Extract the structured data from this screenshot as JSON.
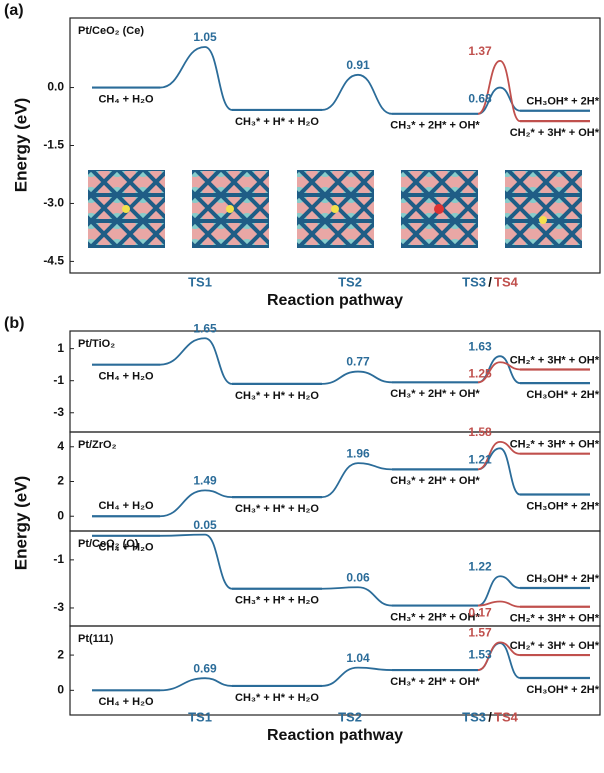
{
  "chart_data": [
    {
      "type": "profile",
      "panel_label": "(a)",
      "title": "Pt/CeO₂ (Ce)",
      "ylabel": "Energy (eV)",
      "xlabel": "Reaction pathway",
      "xticks": [
        "TS1",
        "TS2",
        "TS3",
        "TS4"
      ],
      "xtick_separator": "/",
      "color": "#2b6c99",
      "ylim": [
        -4.8,
        1.8
      ],
      "yticks": [
        {
          "value": 0,
          "label": "0.0"
        },
        -1.5,
        {
          "value": -3,
          "label": "-3.0"
        },
        -4.5
      ],
      "states": [
        {
          "label": "CH₄ + H₂O",
          "energy": 0
        },
        {
          "label": "CH₃* + H* + H₂O",
          "energy": -0.58
        },
        {
          "label": "CH₃* + 2H* + OH*",
          "energy": -0.68
        }
      ],
      "barriers": [
        1.05,
        0.91
      ],
      "branches": [
        {
          "color": "#2b6c99",
          "barrier": 0.68,
          "product": {
            "label": "CH₃OH* + 2H*",
            "energy": -0.6
          }
        },
        {
          "color": "#c0504d",
          "barrier": 1.37,
          "product": {
            "label": "CH₂* + 3H* + OH*",
            "energy": -0.87
          }
        }
      ]
    },
    {
      "type": "profile",
      "panel_label": "(b)",
      "title": "Pt/TiO₂",
      "ylabel": "Energy (eV)",
      "color": "#2b6c99",
      "ylim": [
        -4.2,
        2.1
      ],
      "yticks": [
        1,
        -1,
        -3
      ],
      "states": [
        {
          "label": "CH₄ + H₂O",
          "energy": 0
        },
        {
          "label": "CH₃* + H* + H₂O",
          "energy": -1.2
        },
        {
          "label": "CH₃* + 2H* + OH*",
          "energy": -1.1
        }
      ],
      "barriers": [
        1.65,
        0.77
      ],
      "branches": [
        {
          "color": "#2b6c99",
          "barrier": 1.63,
          "product": {
            "label": "CH₃OH* + 2H*",
            "energy": -1.15
          }
        },
        {
          "color": "#c0504d",
          "barrier": 1.25,
          "product": {
            "label": "CH₂* + 3H* + OH*",
            "energy": -0.3
          }
        }
      ]
    },
    {
      "type": "profile",
      "title": "Pt/ZrO₂",
      "color": "#2b6c99",
      "ylim": [
        -0.85,
        4.85
      ],
      "yticks": [
        4,
        2,
        0
      ],
      "states": [
        {
          "label": "CH₄ + H₂O",
          "energy": 0
        },
        {
          "label": "CH₃* + H* + H₂O",
          "energy": 1.1
        },
        {
          "label": "CH₃* + 2H* + OH*",
          "energy": 2.7
        }
      ],
      "barriers": [
        1.49,
        1.96
      ],
      "branches": [
        {
          "color": "#2b6c99",
          "barrier": 1.21,
          "product": {
            "label": "CH₃OH* + 2H*",
            "energy": 1.25
          }
        },
        {
          "color": "#c0504d",
          "barrier": 1.58,
          "product": {
            "label": "CH₂* + 3H* + OH*",
            "energy": 3.6
          }
        }
      ]
    },
    {
      "type": "profile",
      "title": "Pt/CeO₂ (O)",
      "color": "#2b6c99",
      "ylim": [
        -3.75,
        0.2
      ],
      "yticks": [
        -1,
        -3
      ],
      "states": [
        {
          "label": "CH₄ + H₂O",
          "energy": 0
        },
        {
          "label": "CH₃* + H* + H₂O",
          "energy": -2.2
        },
        {
          "label": "CH₃* + 2H* + OH*",
          "energy": -2.9
        }
      ],
      "barriers": [
        0.05,
        0.06
      ],
      "branches": [
        {
          "color": "#2b6c99",
          "barrier": 1.22,
          "product": {
            "label": "CH₃OH* + 2H*",
            "energy": -2.17
          }
        },
        {
          "color": "#c0504d",
          "barrier": 0.17,
          "product": {
            "label": "CH₂* + 3H* + OH*",
            "energy": -2.95
          }
        }
      ]
    },
    {
      "type": "profile",
      "title": "Pt(111)",
      "xlabel": "Reaction pathway",
      "xticks": [
        "TS1",
        "TS2",
        "TS3",
        "TS4"
      ],
      "xtick_separator": "/",
      "color": "#2b6c99",
      "ylim": [
        -1.4,
        3.65
      ],
      "yticks": [
        2,
        0
      ],
      "states": [
        {
          "label": "CH₄ + H₂O",
          "energy": 0
        },
        {
          "label": "CH₃* + H* + H₂O",
          "energy": 0.25
        },
        {
          "label": "CH₃* + 2H* + OH*",
          "energy": 1.15
        }
      ],
      "barriers": [
        0.69,
        1.04
      ],
      "branches": [
        {
          "color": "#2b6c99",
          "barrier": 1.53,
          "product": {
            "label": "CH₃OH* + 2H*",
            "energy": 0.7
          }
        },
        {
          "color": "#c0504d",
          "barrier": 1.57,
          "product": {
            "label": "CH₂* + 3H* + OH*",
            "energy": 2.0
          }
        }
      ]
    }
  ]
}
